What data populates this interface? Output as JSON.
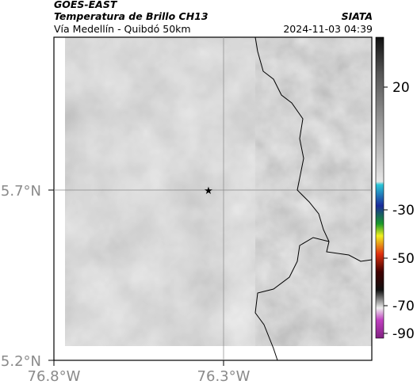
{
  "header": {
    "title": "GOES-EAST",
    "subtitle": "Temperatura de Brillo CH13",
    "location": "Vía Medellín - Quibdó 50km",
    "source": "SIATA",
    "timestamp": "2024-11-03 04:39"
  },
  "map": {
    "lat_ticks": [
      "5.7°N",
      "5.2°N"
    ],
    "lon_ticks": [
      "76.8°W",
      "76.3°W"
    ]
  },
  "colorbar": {
    "ticks": [
      "20",
      "-30",
      "-50",
      "-70",
      "-90"
    ]
  }
}
